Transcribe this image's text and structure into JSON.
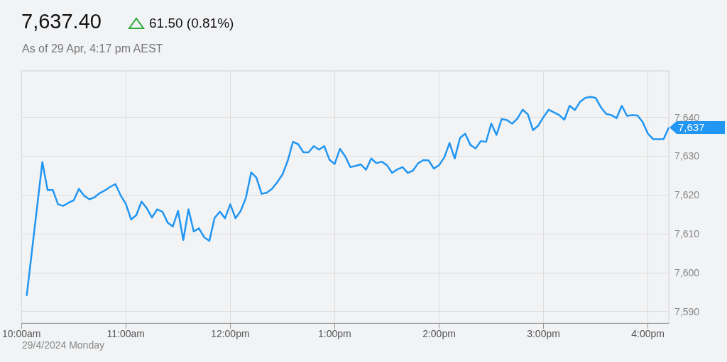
{
  "chart_data": {
    "type": "line",
    "title": "7,637.40",
    "subtitle": "As of 29 Apr, 4:17 pm AEST",
    "annotations": [
      "61.50 (0.81%)",
      "29/4/2024 Monday",
      {
        "text": "7,637",
        "x": 16.2,
        "y": 7637.4
      }
    ],
    "x": [
      10.05,
      10.2,
      10.25,
      10.3,
      10.35,
      10.4,
      10.45,
      10.5,
      10.55,
      10.6,
      10.65,
      10.7,
      10.75,
      10.8,
      10.85,
      10.9,
      10.95,
      11.0,
      11.05,
      11.1,
      11.15,
      11.2,
      11.25,
      11.3,
      11.35,
      11.4,
      11.45,
      11.5,
      11.55,
      11.6,
      11.65,
      11.7,
      11.75,
      11.8,
      11.85,
      11.9,
      11.95,
      12.0,
      12.05,
      12.1,
      12.15,
      12.2,
      12.25,
      12.3,
      12.35,
      12.4,
      12.45,
      12.5,
      12.55,
      12.6,
      12.65,
      12.7,
      12.75,
      12.8,
      12.85,
      12.9,
      12.95,
      13.0,
      13.05,
      13.1,
      13.15,
      13.2,
      13.25,
      13.3,
      13.35,
      13.4,
      13.45,
      13.5,
      13.55,
      13.6,
      13.65,
      13.7,
      13.75,
      13.8,
      13.85,
      13.9,
      13.95,
      14.0,
      14.05,
      14.1,
      14.15,
      14.2,
      14.25,
      14.3,
      14.35,
      14.4,
      14.45,
      14.5,
      14.55,
      14.6,
      14.65,
      14.7,
      14.75,
      14.8,
      14.85,
      14.9,
      14.95,
      15.0,
      15.05,
      15.1,
      15.15,
      15.2,
      15.25,
      15.3,
      15.35,
      15.4,
      15.45,
      15.5,
      15.55,
      15.6,
      15.65,
      15.7,
      15.75,
      15.8,
      15.85,
      15.9,
      15.95,
      16.0,
      16.05,
      16.1,
      16.15,
      16.2
    ],
    "series": [
      {
        "color": "#2196f3",
        "values": [
          7594.0,
          7628.5,
          7621.3,
          7621.3,
          7617.6,
          7617.2,
          7618.0,
          7618.6,
          7621.6,
          7619.8,
          7618.9,
          7619.4,
          7620.5,
          7621.2,
          7622.1,
          7622.8,
          7619.9,
          7617.7,
          7613.7,
          7614.8,
          7618.3,
          7616.6,
          7614.2,
          7616.3,
          7615.7,
          7612.9,
          7611.9,
          7615.9,
          7608.4,
          7616.3,
          7610.6,
          7611.4,
          7609.1,
          7608.2,
          7614.1,
          7615.7,
          7614.0,
          7617.6,
          7614.0,
          7615.9,
          7619.3,
          7625.8,
          7624.5,
          7620.3,
          7620.6,
          7621.6,
          7623.3,
          7625.3,
          7628.8,
          7633.7,
          7633.1,
          7631.0,
          7631.0,
          7632.6,
          7631.7,
          7632.6,
          7629.1,
          7628.0,
          7631.9,
          7630.0,
          7627.2,
          7627.5,
          7627.9,
          7626.5,
          7629.4,
          7628.2,
          7628.6,
          7627.7,
          7625.7,
          7626.6,
          7627.2,
          7625.7,
          7626.3,
          7628.2,
          7629.0,
          7628.9,
          7626.8,
          7627.7,
          7629.7,
          7633.4,
          7629.4,
          7634.7,
          7635.8,
          7632.9,
          7632.0,
          7633.9,
          7633.7,
          7638.4,
          7635.5,
          7639.6,
          7639.3,
          7638.4,
          7639.7,
          7642.0,
          7640.8,
          7636.7,
          7637.9,
          7640.1,
          7642.0,
          7641.3,
          7640.6,
          7639.4,
          7643.0,
          7641.9,
          7644.0,
          7645.0,
          7645.3,
          7645.0,
          7642.6,
          7640.9,
          7640.6,
          7639.8,
          7643.0,
          7640.4,
          7640.6,
          7640.5,
          7638.8,
          7635.8,
          7634.4,
          7634.4,
          7634.4,
          7637.4
        ]
      }
    ],
    "xlim": [
      10,
      16.2
    ],
    "xticks": [
      {
        "value": 10,
        "label": "10:00am"
      },
      {
        "value": 11,
        "label": "11:00am"
      },
      {
        "value": 12,
        "label": "12:00pm"
      },
      {
        "value": 13,
        "label": "1:00pm"
      },
      {
        "value": 14,
        "label": "2:00pm"
      },
      {
        "value": 15,
        "label": "3:00pm"
      },
      {
        "value": 16,
        "label": "4:00pm"
      }
    ],
    "ylim": [
      7587,
      7652
    ],
    "yticks": [
      {
        "value": 7590,
        "label": "7,590"
      },
      {
        "value": 7600,
        "label": "7,600"
      },
      {
        "value": 7610,
        "label": "7,610"
      },
      {
        "value": 7620,
        "label": "7,620"
      },
      {
        "value": 7630,
        "label": "7,630"
      },
      {
        "value": 7640,
        "label": "7,640"
      }
    ],
    "grid": true,
    "marker": "none",
    "line_style": "solid"
  }
}
